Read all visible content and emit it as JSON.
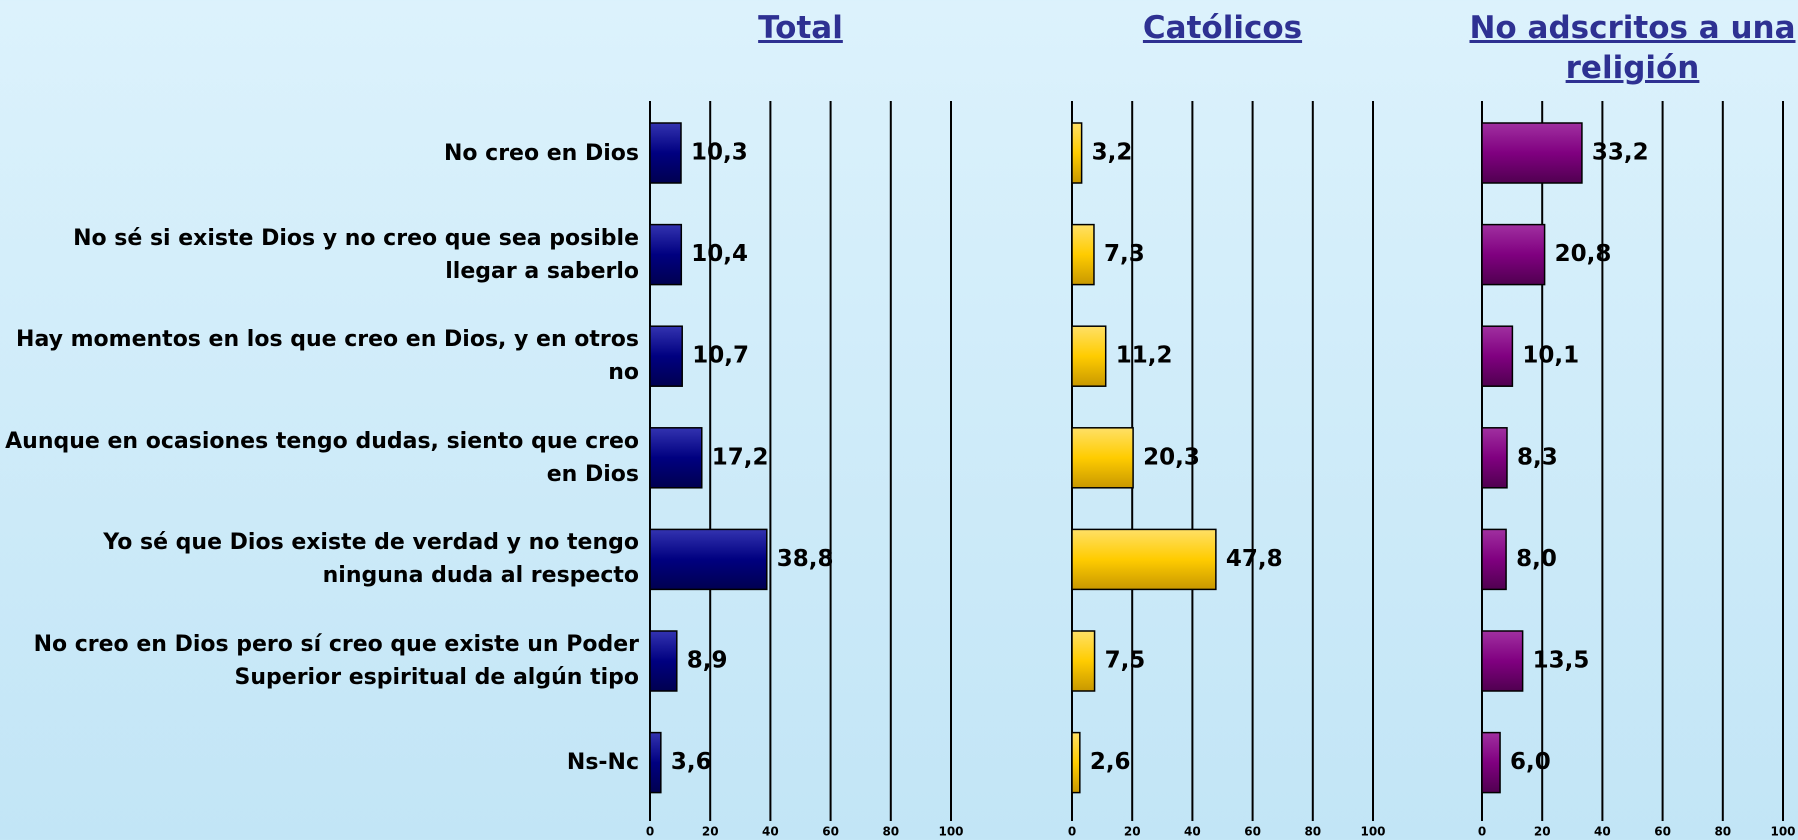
{
  "chart_data": [
    {
      "type": "bar",
      "title": "Total",
      "categories": [
        "No creo en Dios",
        "No sé si existe Dios y no creo que sea posible llegar a saberlo",
        "Hay momentos en los que creo en Dios, y en otros no",
        "Aunque en ocasiones tengo dudas, siento que creo en Dios",
        "Yo sé que Dios existe de verdad y no tengo ninguna duda al respecto",
        "No creo en Dios pero sí creo que existe un Poder Superior espiritual de algún tipo",
        "Ns-Nc"
      ],
      "values": [
        10.3,
        10.4,
        10.7,
        17.2,
        38.8,
        8.9,
        3.6
      ],
      "value_labels": [
        "10,3",
        "10,4",
        "10,7",
        "17,2",
        "38,8",
        "8,9",
        "3,6"
      ],
      "color": "#000080",
      "xlim": [
        0,
        100
      ],
      "xticks": [
        0,
        20,
        40,
        60,
        80,
        100
      ],
      "grid": true
    },
    {
      "type": "bar",
      "title": "Católicos",
      "values": [
        3.2,
        7.3,
        11.2,
        20.3,
        47.8,
        7.5,
        2.6
      ],
      "value_labels": [
        "3,2",
        "7,3",
        "11,2",
        "20,3",
        "47,8",
        "7,5",
        "2,6"
      ],
      "color": "#ffcc00",
      "xlim": [
        0,
        100
      ],
      "xticks": [
        0,
        20,
        40,
        60,
        80,
        100
      ],
      "grid": true
    },
    {
      "type": "bar",
      "title": "No adscritos a una religión",
      "values": [
        33.2,
        20.8,
        10.1,
        8.3,
        8.0,
        13.5,
        6.0
      ],
      "value_labels": [
        "33,2",
        "20,8",
        "10,1",
        "8,3",
        "8,0",
        "13,5",
        "6,0"
      ],
      "color": "#800080",
      "xlim": [
        0,
        100
      ],
      "xticks": [
        0,
        20,
        40,
        60,
        80,
        100
      ],
      "grid": true
    }
  ]
}
